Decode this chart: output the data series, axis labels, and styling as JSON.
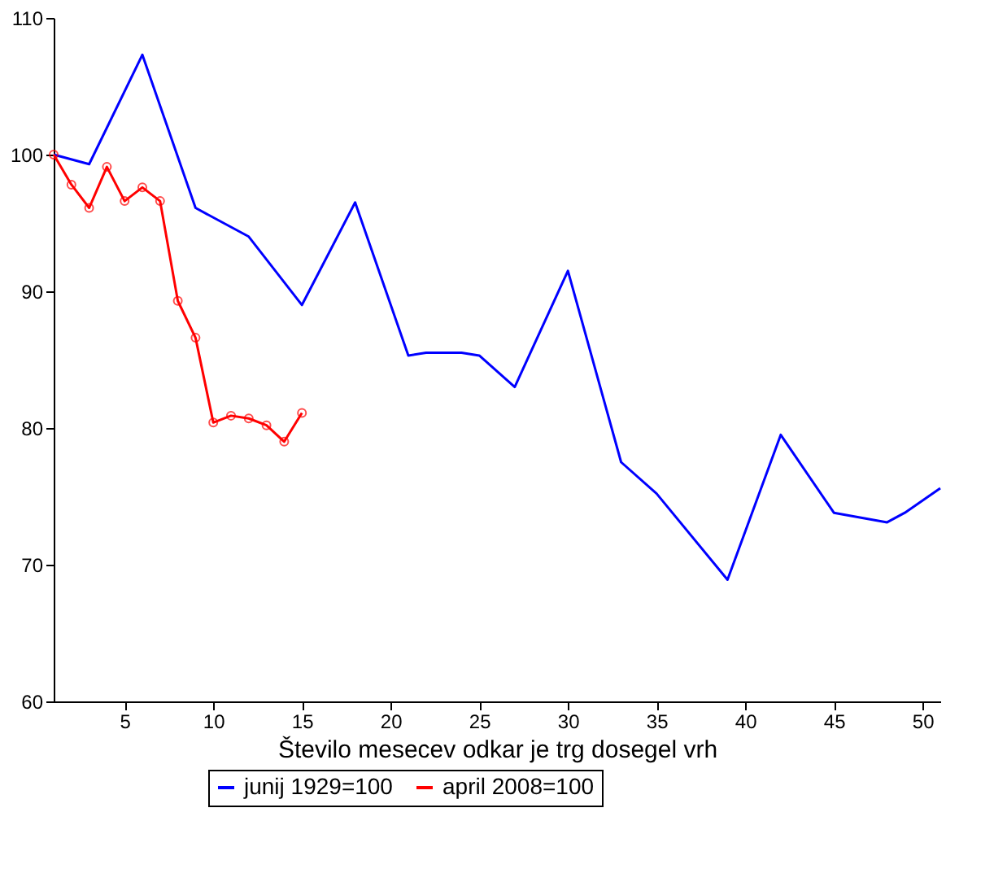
{
  "chart_data": {
    "type": "line",
    "xlabel": "Število mesecev odkar je trg dosegel vrh",
    "xlim": [
      1,
      51
    ],
    "xticks": [
      5,
      10,
      15,
      20,
      25,
      30,
      35,
      40,
      45,
      50
    ],
    "ylim": [
      60,
      110
    ],
    "yticks": [
      60,
      70,
      80,
      90,
      100,
      110
    ],
    "grid": false,
    "legend": "bottom",
    "series": [
      {
        "name": "junij 1929=100",
        "color": "#0000ff",
        "marker": "none",
        "x": [
          1,
          3,
          6,
          9,
          12,
          15,
          18,
          21,
          22,
          24,
          25,
          27,
          30,
          33,
          35,
          39,
          42,
          45,
          48,
          49,
          51
        ],
        "values": [
          100,
          99.3,
          107.3,
          96.1,
          94,
          89,
          96.5,
          85.3,
          85.5,
          85.5,
          85.3,
          83,
          91.5,
          77.5,
          75.2,
          68.9,
          79.5,
          73.8,
          73.1,
          73.8,
          75.6
        ]
      },
      {
        "name": "april 2008=100",
        "color": "#ff0000",
        "marker": "circle",
        "x": [
          1,
          2,
          3,
          4,
          5,
          6,
          7,
          8,
          9,
          10,
          11,
          12,
          13,
          14,
          15
        ],
        "values": [
          100,
          97.8,
          96.1,
          99.1,
          96.6,
          97.6,
          96.6,
          89.3,
          86.6,
          80.4,
          80.9,
          80.7,
          80.2,
          79,
          81.1
        ]
      }
    ]
  }
}
